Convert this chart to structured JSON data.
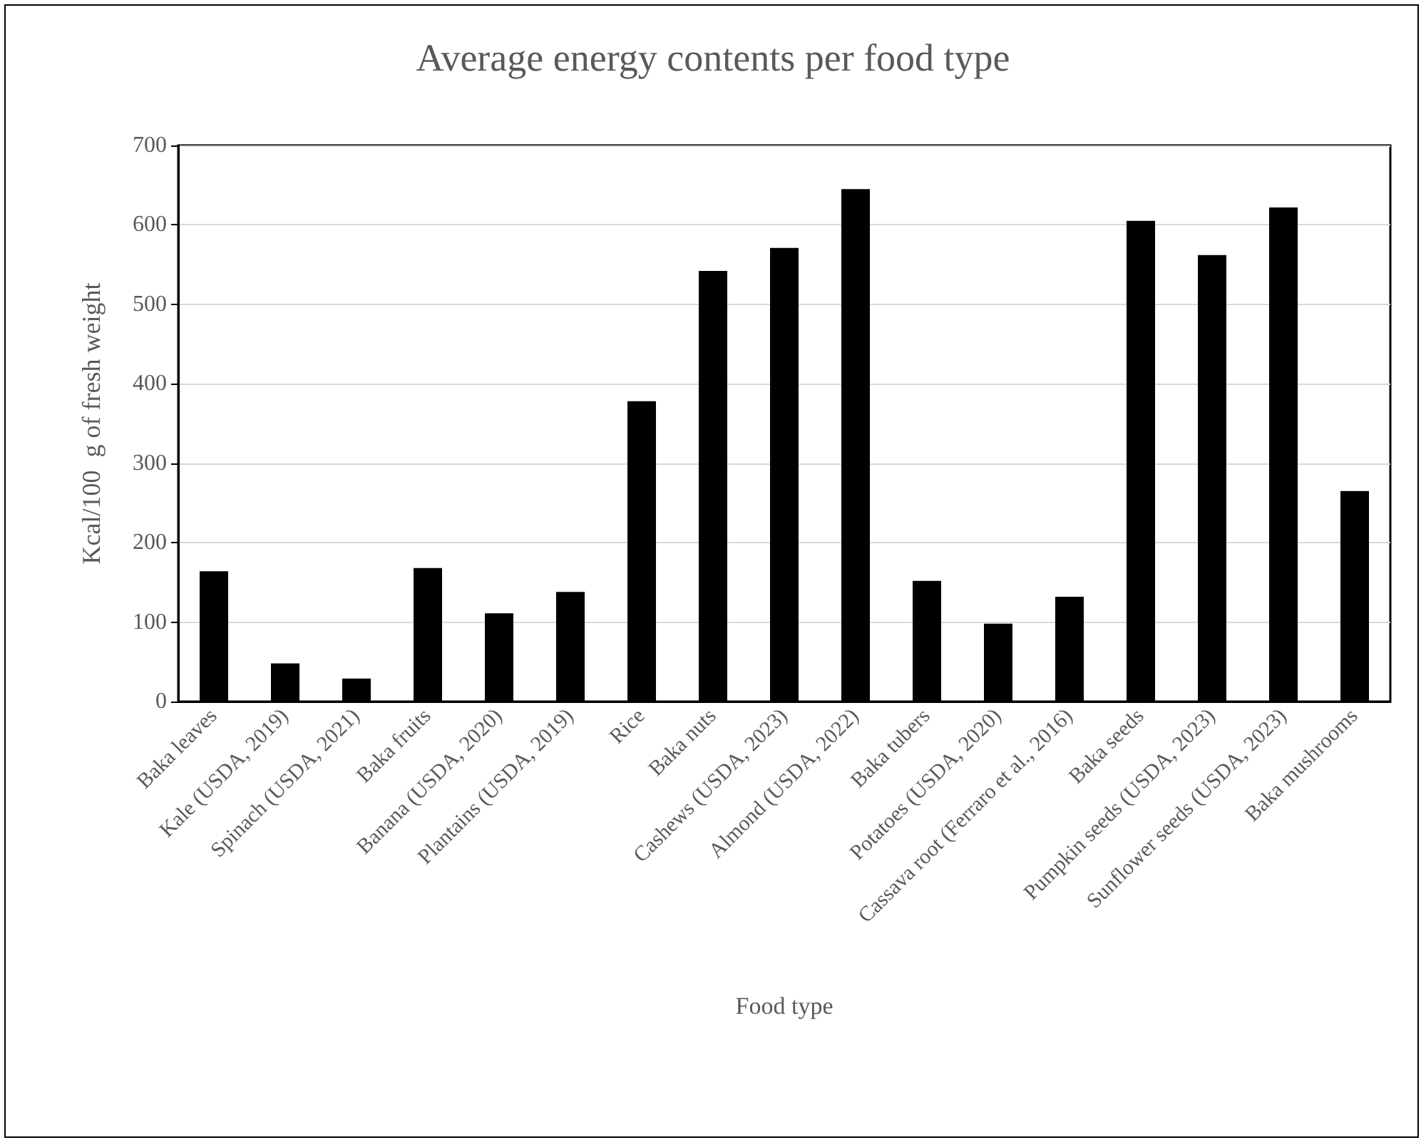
{
  "chart_data": {
    "type": "bar",
    "title": "Average energy contents per food type",
    "xlabel": "Food type",
    "ylabel": "Kcal/100  g of fresh weight",
    "categories": [
      "Baka leaves",
      "Kale (USDA, 2019)",
      "Spinach (USDA, 2021)",
      "Baka fruits",
      "Banana (USDA, 2020)",
      "Plantains (USDA, 2019)",
      "Rice",
      "Baka nuts",
      "Cashews (USDA, 2023)",
      "Almond (USDA, 2022)",
      "Baka tubers",
      "Potatoes (USDA, 2020)",
      "Cassava root (Ferraro et al., 2016)",
      "Baka seeds",
      "Pumpkin seeds (USDA, 2023)",
      "Sunflower seeds (USDA, 2023)",
      "Baka mushrooms"
    ],
    "values": [
      164,
      48,
      29,
      168,
      111,
      138,
      378,
      542,
      571,
      645,
      152,
      98,
      132,
      605,
      562,
      622,
      265
    ],
    "color": "#000000",
    "ylim": [
      0,
      700
    ],
    "yticks": [
      0,
      100,
      200,
      300,
      400,
      500,
      600,
      700
    ],
    "grid": "y"
  }
}
